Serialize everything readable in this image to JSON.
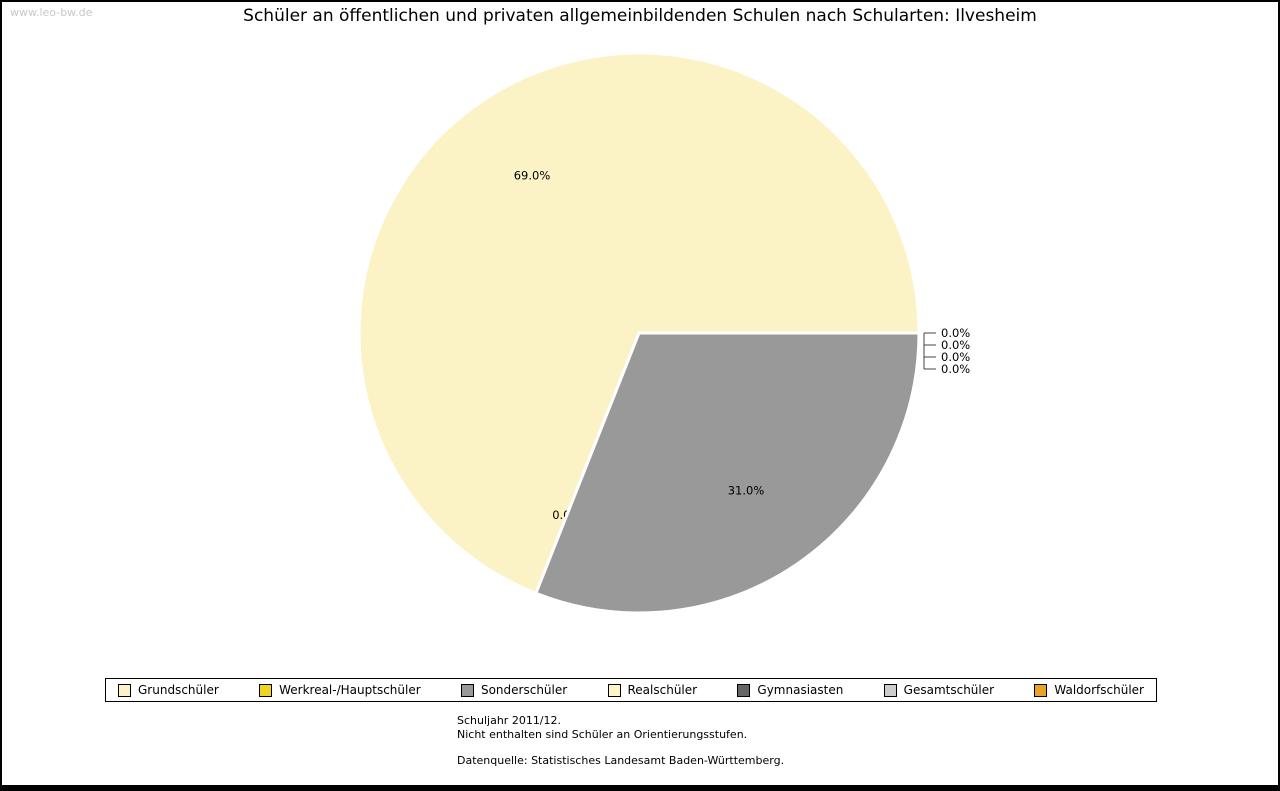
{
  "watermark": "www.leo-bw.de",
  "chart_data": {
    "type": "pie",
    "title": "Schüler an öffentlichen und privaten allgemeinbildenden Schulen nach Schularten: Ilvesheim",
    "categories": [
      "Grundschüler",
      "Werkreal-/Hauptschüler",
      "Sonderschüler",
      "Realschüler",
      "Gymnasiasten",
      "Gesamtschüler",
      "Waldorfschüler"
    ],
    "values": [
      69.0,
      0.0,
      31.0,
      0.0,
      0.0,
      0.0,
      0.0
    ],
    "labels": [
      "69.0%",
      "0.0%",
      "31.0%",
      "0.0%",
      "0.0%",
      "0.0%",
      "0.0%"
    ],
    "colors": [
      "#FBF3C5",
      "#EFD520",
      "#999999",
      "#FCF6C4",
      "#666666",
      "#CCCCCC",
      "#E9A424"
    ],
    "unit": "%",
    "start_angle_deg": 0,
    "direction": "counterclockwise",
    "legend_position": "bottom",
    "slice_separator_color": "#FFFFFF"
  },
  "footnotes": {
    "line1": "Schuljahr 2011/12.",
    "line2": "Nicht enthalten sind Schüler an Orientierungsstufen.",
    "source": "Datenquelle: Statistisches Landesamt Baden-Württemberg."
  }
}
